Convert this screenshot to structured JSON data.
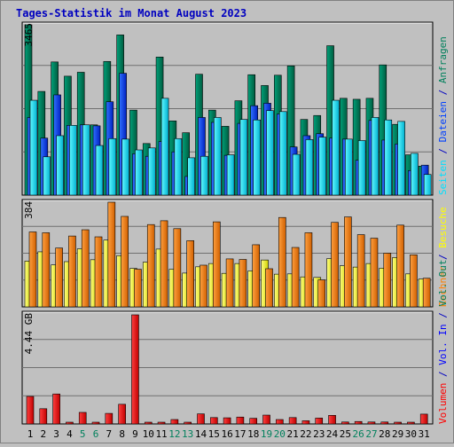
{
  "title": "Tages-Statistik im Monat August 2023",
  "colors": {
    "background": "#c0c0c0",
    "title": "#0000c0",
    "anfragen": "#00805c",
    "dateien": "#0040ff",
    "seiten": "#00e0ff",
    "besuche": "#ffff00",
    "rechner": "#ff8000",
    "volumen": "#ff0000",
    "vol_in": "#0000ff",
    "vol_out": "#00805c",
    "grid": "#707070",
    "weekend_label": "#00805c"
  },
  "right_labels": {
    "top": [
      {
        "text": "Seiten",
        "color": "#00e0ff"
      },
      {
        "text": " / ",
        "color": "#0000c0"
      },
      {
        "text": "Dateien",
        "color": "#0040ff"
      },
      {
        "text": " / ",
        "color": "#0000c0"
      },
      {
        "text": "Anfragen",
        "color": "#00805c"
      }
    ],
    "middle": [
      {
        "text": "Rechner",
        "color": "#ff8000"
      },
      {
        "text": " / ",
        "color": "#0000c0"
      },
      {
        "text": "Besuche",
        "color": "#ffff00"
      }
    ],
    "bottom": [
      {
        "text": "Volumen",
        "color": "#ff0000"
      },
      {
        "text": " / ",
        "color": "#0000c0"
      },
      {
        "text": "Vol. In",
        "color": "#0000ff"
      },
      {
        "text": " / ",
        "color": "#0000c0"
      },
      {
        "text": "Vol. Out",
        "color": "#00805c"
      }
    ]
  },
  "chart_data": {
    "type": "bar",
    "categories": [
      "1",
      "2",
      "3",
      "4",
      "5",
      "6",
      "7",
      "8",
      "9",
      "10",
      "11",
      "12",
      "13",
      "14",
      "15",
      "16",
      "17",
      "18",
      "19",
      "20",
      "21",
      "22",
      "23",
      "24",
      "25",
      "26",
      "27",
      "28",
      "29",
      "30",
      "31"
    ],
    "weekend_days": [
      "5",
      "6",
      "12",
      "13",
      "19",
      "20",
      "26",
      "27"
    ],
    "panels": [
      {
        "id": "requests",
        "max_label": "3465",
        "ymax": 3465,
        "series": [
          {
            "name": "Anfragen",
            "values": [
              3465,
              2110,
              2710,
              2420,
              2500,
              1430,
              2720,
              3260,
              1730,
              1050,
              2810,
              1510,
              1270,
              2460,
              1730,
              1400,
              1920,
              2450,
              2230,
              2440,
              2630,
              1540,
              1620,
              3040,
              1970,
              1950,
              1970,
              2650,
              1440,
              820,
              590
            ]
          },
          {
            "name": "Dateien",
            "values": [
              1580,
              1160,
              2040,
              1420,
              1430,
              1410,
              1900,
              2480,
              840,
              790,
              1090,
              880,
              380,
              1580,
              1480,
              810,
              1460,
              1820,
              1870,
              1650,
              980,
              1210,
              1250,
              1160,
              1140,
              710,
              1520,
              1120,
              1040,
              500,
              610
            ]
          },
          {
            "name": "Seiten",
            "values": [
              1930,
              780,
              1210,
              1420,
              1430,
              1010,
              1150,
              1140,
              920,
              960,
              1970,
              1150,
              760,
              790,
              1580,
              820,
              1540,
              1530,
              1720,
              1700,
              830,
              1130,
              1180,
              1930,
              1140,
              1110,
              1580,
              1530,
              1500,
              850,
              420
            ]
          }
        ]
      },
      {
        "id": "visits",
        "max_label": "384",
        "ymax": 384,
        "series": [
          {
            "name": "Besuche",
            "values": [
              168,
              202,
              154,
              166,
              213,
              173,
              245,
              188,
              141,
              164,
              212,
              138,
              124,
              147,
              159,
              123,
              159,
              132,
              172,
              120,
              121,
              110,
              108,
              177,
              151,
              146,
              159,
              142,
              181,
              121,
              102
            ]
          },
          {
            "name": "Rechner",
            "values": [
              275,
              272,
              216,
              260,
              283,
              257,
              384,
              332,
              138,
              302,
              316,
              287,
              243,
              153,
              312,
              176,
              174,
              228,
              140,
              328,
              218,
              272,
              99,
              310,
              330,
              265,
              252,
              197,
              300,
              191,
              105
            ]
          }
        ]
      },
      {
        "id": "volume",
        "max_label": "4.44 GB",
        "ymax": 4.44,
        "series": [
          {
            "name": "Volumen",
            "values": [
              1.12,
              0.62,
              1.22,
              0.05,
              0.47,
              0.06,
              0.43,
              0.8,
              4.44,
              0.04,
              0.04,
              0.18,
              0.06,
              0.41,
              0.26,
              0.25,
              0.28,
              0.23,
              0.36,
              0.18,
              0.26,
              0.13,
              0.24,
              0.35,
              0.08,
              0.1,
              0.08,
              0.08,
              0.05,
              0.06,
              0.4
            ]
          }
        ]
      }
    ]
  }
}
